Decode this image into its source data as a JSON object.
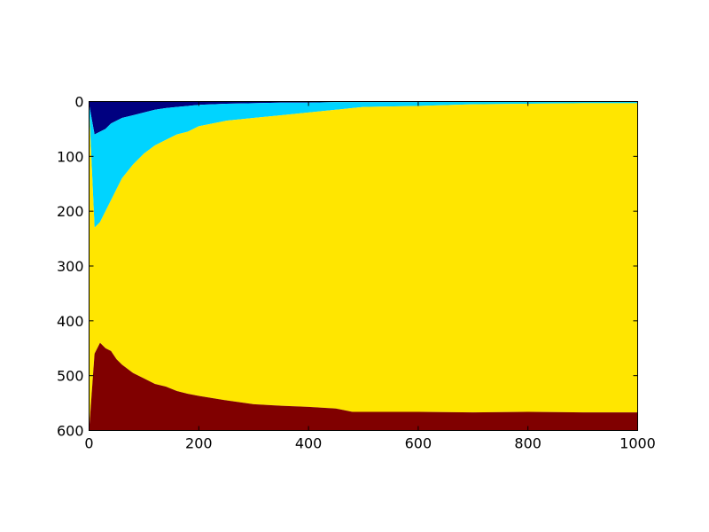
{
  "chart_data": {
    "type": "area",
    "title": "",
    "xlabel": "",
    "ylabel": "",
    "xlim": [
      0,
      1000
    ],
    "ylim": [
      600,
      0
    ],
    "y_inverted": true,
    "grid": false,
    "legend": "none",
    "x_ticks": [
      0,
      200,
      400,
      600,
      800,
      1000
    ],
    "x_tick_labels": [
      "0",
      "200",
      "400",
      "600",
      "800",
      "1000"
    ],
    "y_ticks": [
      0,
      100,
      200,
      300,
      400,
      500,
      600
    ],
    "y_tick_labels": [
      "0",
      "100",
      "200",
      "300",
      "400",
      "500",
      "600"
    ],
    "colors": {
      "band_1": "#000080",
      "band_2": "#00d4ff",
      "band_3": "#ffe600",
      "band_4": "#800000"
    },
    "x": [
      0,
      10,
      20,
      30,
      40,
      50,
      60,
      80,
      100,
      120,
      140,
      160,
      180,
      200,
      250,
      300,
      350,
      400,
      450,
      480,
      500,
      600,
      700,
      800,
      900,
      1000
    ],
    "boundaries": [
      {
        "bands": [
          "band_1",
          "band_2"
        ],
        "values": [
          5,
          60,
          55,
          50,
          40,
          35,
          30,
          25,
          20,
          15,
          12,
          10,
          8,
          6,
          4,
          3,
          2,
          2,
          1,
          1,
          1,
          1,
          0,
          0,
          0,
          0
        ]
      },
      {
        "bands": [
          "band_2",
          "band_3"
        ],
        "values": [
          10,
          230,
          220,
          200,
          180,
          160,
          140,
          115,
          95,
          80,
          70,
          60,
          55,
          45,
          35,
          30,
          25,
          20,
          15,
          12,
          10,
          8,
          5,
          4,
          3,
          3
        ]
      },
      {
        "bands": [
          "band_3",
          "band_4"
        ],
        "values": [
          600,
          460,
          440,
          450,
          455,
          470,
          480,
          495,
          505,
          515,
          520,
          528,
          533,
          537,
          545,
          552,
          555,
          557,
          560,
          566,
          566,
          566,
          567,
          566,
          567,
          567
        ]
      }
    ]
  }
}
